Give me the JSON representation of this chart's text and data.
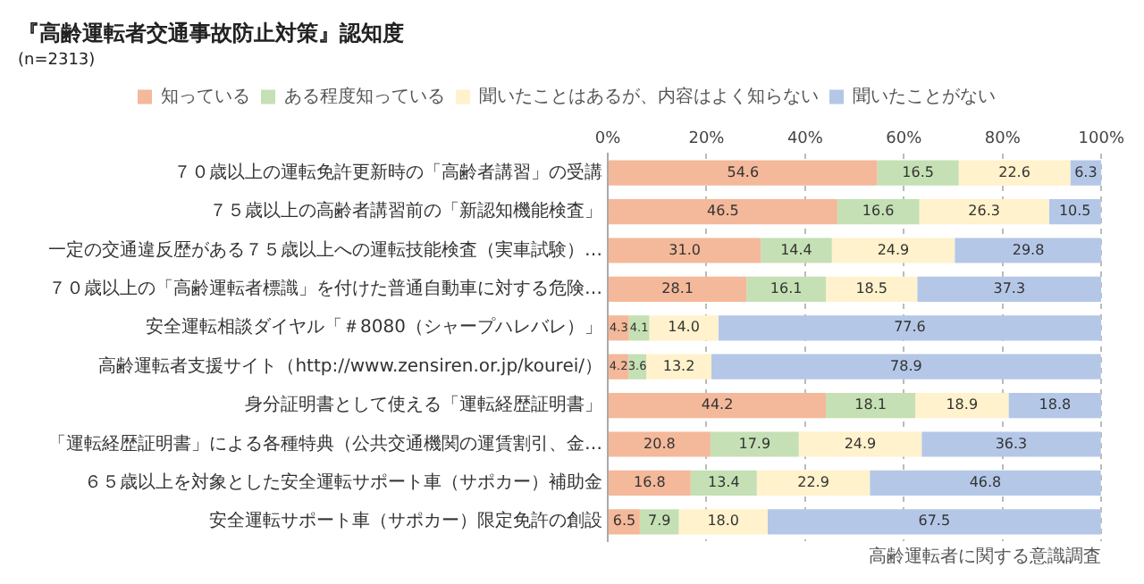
{
  "chart_data": {
    "type": "bar",
    "orientation": "horizontal",
    "stacked": true,
    "title": "『高齢運転者交通事故防止対策』認知度",
    "subtitle": "(n=2313)",
    "categories": [
      "７０歳以上の運転免許更新時の「高齢者講習」の受講",
      "７５歳以上の高齢者講習前の「新認知機能検査」",
      "一定の交通違反歴がある７５歳以上への運転技能検査（実車試験）…",
      "７０歳以上の「高齢運転者標識」を付けた普通自動車に対する危険…",
      "安全運転相談ダイヤル「＃8080（シャープハレバレ）」",
      "高齢運転者支援サイト（http://www.zensiren.or.jp/kourei/）",
      "身分証明書として使える「運転経歴証明書」",
      "「運転経歴証明書」による各種特典（公共交通機関の運賃割引、金…",
      "６５歳以上を対象とした安全運転サポート車（サポカー）補助金",
      "安全運転サポート車（サポカー）限定免許の創設"
    ],
    "series": [
      {
        "name": "知っている",
        "color": "#f4b89a",
        "values": [
          54.6,
          46.5,
          31.0,
          28.1,
          4.3,
          4.2,
          44.2,
          20.8,
          16.8,
          6.5
        ],
        "value_labels": [
          "54.6",
          "46.5",
          "31.0",
          "28.1",
          "4.3",
          "4.2",
          "44.2",
          "20.8",
          "16.8",
          "6.5"
        ]
      },
      {
        "name": "ある程度知っている",
        "color": "#c5e0b4",
        "values": [
          16.5,
          16.6,
          14.4,
          16.1,
          4.1,
          3.6,
          18.1,
          17.9,
          13.4,
          7.9
        ],
        "value_labels": [
          "16.5",
          "16.6",
          "14.4",
          "16.1",
          "4.1",
          "3.6",
          "18.1",
          "17.9",
          "13.4",
          "7.9"
        ]
      },
      {
        "name": "聞いたことはあるが、内容はよく知らない",
        "color": "#fff2cc",
        "values": [
          22.6,
          26.3,
          24.9,
          18.5,
          14.0,
          13.2,
          18.9,
          24.9,
          22.9,
          18.0
        ],
        "value_labels": [
          "22.6",
          "26.3",
          "24.9",
          "18.5",
          "14.0",
          "13.2",
          "18.9",
          "24.9",
          "22.9",
          "18.0"
        ]
      },
      {
        "name": "聞いたことがない",
        "color": "#b4c7e7",
        "values": [
          6.3,
          10.5,
          29.8,
          37.3,
          77.6,
          78.9,
          18.8,
          36.3,
          46.8,
          67.5
        ],
        "value_labels": [
          "6.3",
          "10.5",
          "29.8",
          "37.3",
          "77.6",
          "78.9",
          "18.8",
          "36.3",
          "46.8",
          "67.5"
        ]
      }
    ],
    "xlim": [
      0,
      100
    ],
    "xticks": [
      {
        "value": 0,
        "label": "0%"
      },
      {
        "value": 20,
        "label": "20%"
      },
      {
        "value": 40,
        "label": "40%"
      },
      {
        "value": 60,
        "label": "60%"
      },
      {
        "value": 80,
        "label": "80%"
      },
      {
        "value": 100,
        "label": "100%"
      }
    ],
    "grid": "x",
    "legend": "top",
    "annotations": [
      "高齢運転者に関する意識調査"
    ]
  }
}
